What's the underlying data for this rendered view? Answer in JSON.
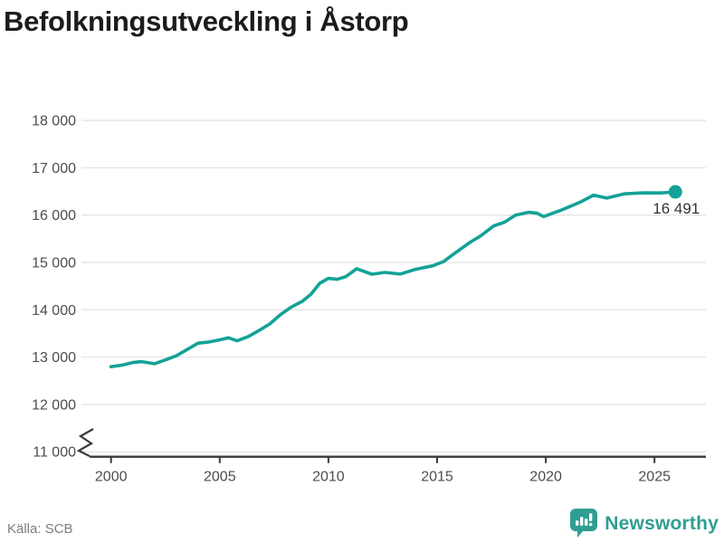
{
  "title": "Befolkningsutveckling i Åstorp",
  "source": "Källa: SCB",
  "branding": {
    "name": "Newsworthy",
    "color": "#2f9e92",
    "icon": "bar-chart-speech-bubble-icon"
  },
  "chart_data": {
    "type": "line",
    "title": "Befolkningsutveckling i Åstorp",
    "xlabel": "",
    "ylabel": "",
    "x_ticks": [
      2000,
      2005,
      2010,
      2015,
      2020,
      2025
    ],
    "y_ticks": [
      11000,
      12000,
      13000,
      14000,
      15000,
      16000,
      17000,
      18000
    ],
    "y_tick_labels": [
      "11 000",
      "12 000",
      "13 000",
      "14 000",
      "15 000",
      "16 000",
      "17 000",
      "18 000"
    ],
    "xlim": [
      1998.6,
      2027.4
    ],
    "ylim": [
      11000,
      18000
    ],
    "axis_break_at_bottom": true,
    "grid": true,
    "legend_position": "none",
    "line_color": "#13a297",
    "grid_color": "#e7e7e7",
    "axis_color": "#3a3a3a",
    "end_label": "16 491",
    "end_value": 16491,
    "series": [
      {
        "name": "Befolkning",
        "points": [
          [
            2000.0,
            12798
          ],
          [
            2000.5,
            12830
          ],
          [
            2001.0,
            12886
          ],
          [
            2001.4,
            12905
          ],
          [
            2002.0,
            12860
          ],
          [
            2002.5,
            12940
          ],
          [
            2003.0,
            13027
          ],
          [
            2003.5,
            13160
          ],
          [
            2004.0,
            13294
          ],
          [
            2004.5,
            13320
          ],
          [
            2005.0,
            13365
          ],
          [
            2005.4,
            13410
          ],
          [
            2005.8,
            13345
          ],
          [
            2006.3,
            13430
          ],
          [
            2006.8,
            13560
          ],
          [
            2007.3,
            13700
          ],
          [
            2007.8,
            13900
          ],
          [
            2008.3,
            14060
          ],
          [
            2008.8,
            14180
          ],
          [
            2009.2,
            14330
          ],
          [
            2009.6,
            14560
          ],
          [
            2010.0,
            14663
          ],
          [
            2010.4,
            14645
          ],
          [
            2010.8,
            14700
          ],
          [
            2011.3,
            14868
          ],
          [
            2012.0,
            14752
          ],
          [
            2012.6,
            14790
          ],
          [
            2013.3,
            14755
          ],
          [
            2014.0,
            14855
          ],
          [
            2014.8,
            14930
          ],
          [
            2015.3,
            15020
          ],
          [
            2015.8,
            15190
          ],
          [
            2016.5,
            15420
          ],
          [
            2017.0,
            15560
          ],
          [
            2017.6,
            15770
          ],
          [
            2018.1,
            15850
          ],
          [
            2018.6,
            16000
          ],
          [
            2019.2,
            16060
          ],
          [
            2019.6,
            16040
          ],
          [
            2019.9,
            15969
          ],
          [
            2020.2,
            16019
          ],
          [
            2020.7,
            16104
          ],
          [
            2021.6,
            16277
          ],
          [
            2022.2,
            16423
          ],
          [
            2022.8,
            16360
          ],
          [
            2023.6,
            16450
          ],
          [
            2024.5,
            16470
          ],
          [
            2025.3,
            16468
          ],
          [
            2025.96,
            16491
          ]
        ]
      }
    ]
  }
}
